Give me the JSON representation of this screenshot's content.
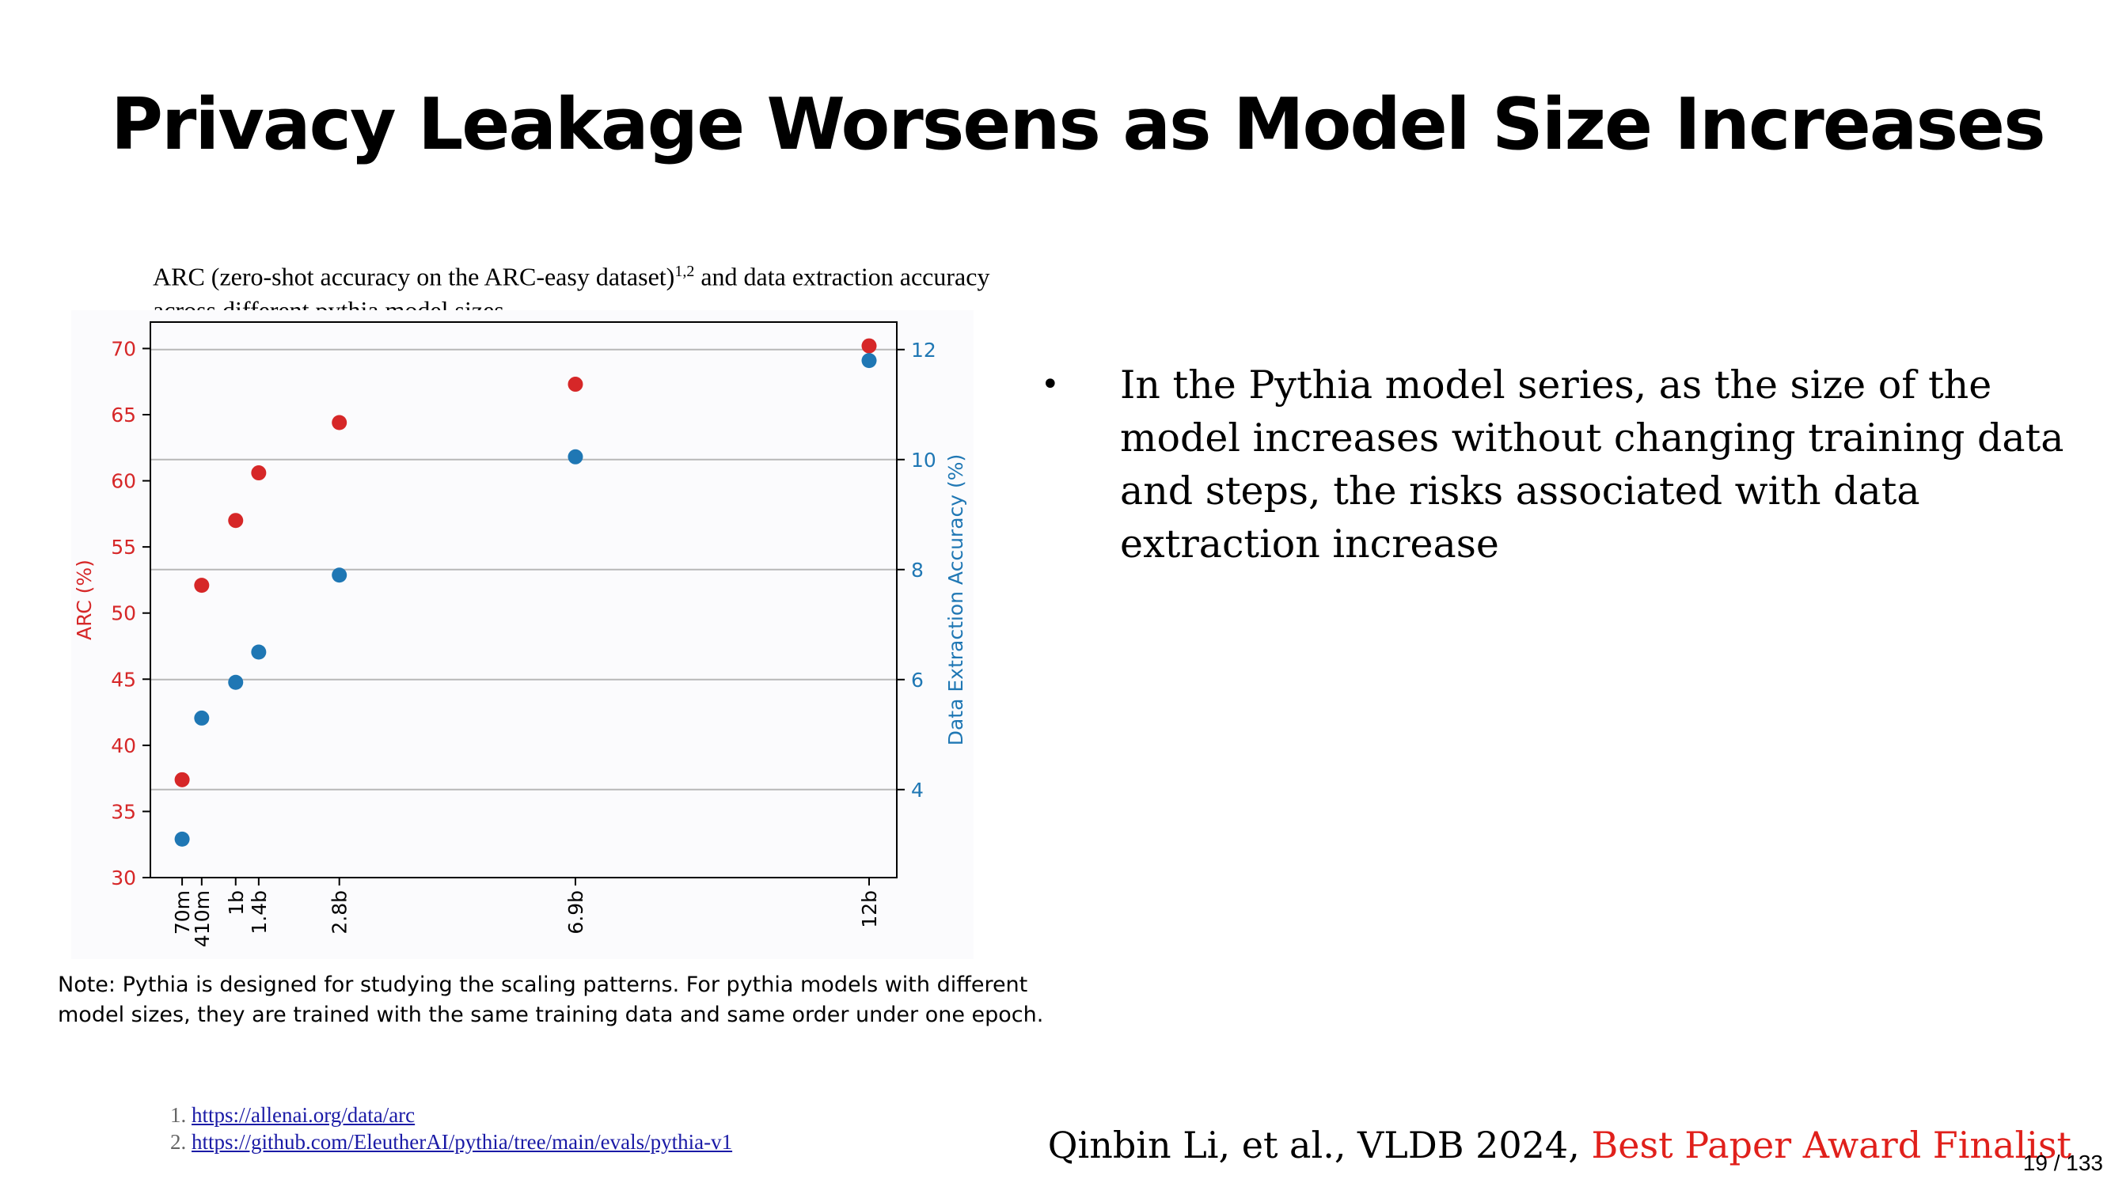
{
  "slide": {
    "title": "Privacy Leakage Worsens as Model Size Increases",
    "caption": {
      "part1": "ARC (zero-shot accuracy on the ARC-easy dataset)",
      "sup": "1,2",
      "part2": " and data extraction accuracy across different pythia model sizes."
    },
    "note": "Note: Pythia is designed for studying the scaling patterns. For pythia models with different model sizes, they are trained with the same training data and same order under one epoch.",
    "references": [
      {
        "num": "1.",
        "url": "https://allenai.org/data/arc"
      },
      {
        "num": "2.",
        "url": "https://github.com/EleutherAI/pythia/tree/main/evals/pythia-v1"
      }
    ],
    "bullets": [
      "In the Pythia model series,  as the size of the model increases without changing training data and steps, the risks associated with data extraction increase"
    ],
    "citation": {
      "authors": "Qinbin Li, et al., VLDB 2024, ",
      "award": "Best Paper Award Finalist"
    },
    "page": "19 / 133"
  },
  "colors": {
    "arc": "#d62728",
    "extraction": "#1f77b4",
    "award": "#e0201b"
  },
  "chart_data": {
    "type": "scatter",
    "title": "",
    "x_label": "",
    "categories": [
      "70m",
      "410m",
      "1b",
      "1.4b",
      "2.8b",
      "6.9b",
      "12b"
    ],
    "x_params_billion": [
      0.07,
      0.41,
      1.0,
      1.4,
      2.8,
      6.9,
      12.0
    ],
    "series": [
      {
        "axis": "left",
        "color": "#d62728",
        "values": [
          37.4,
          52.1,
          57.0,
          60.6,
          64.4,
          67.3,
          70.2
        ]
      },
      {
        "axis": "right",
        "color": "#1f77b4",
        "values": [
          3.1,
          5.3,
          5.95,
          6.5,
          7.9,
          10.05,
          11.8
        ]
      }
    ],
    "left_axis": {
      "label": "ARC (%)",
      "range": [
        30,
        72
      ],
      "ticks": [
        30,
        35,
        40,
        45,
        50,
        55,
        60,
        65,
        70
      ]
    },
    "right_axis": {
      "label": "Data Extraction Accuracy (%)",
      "range": [
        2.4,
        12.5
      ],
      "ticks": [
        4,
        6,
        8,
        10,
        12
      ]
    },
    "grid": "horizontal lines at right-axis ticks"
  }
}
